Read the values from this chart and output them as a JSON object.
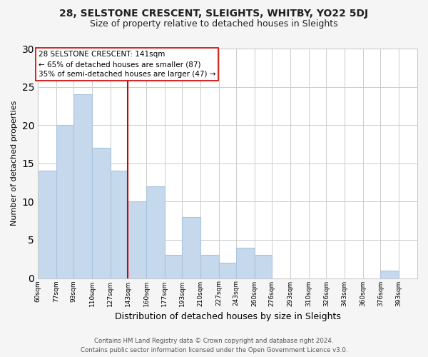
{
  "title1": "28, SELSTONE CRESCENT, SLEIGHTS, WHITBY, YO22 5DJ",
  "title2": "Size of property relative to detached houses in Sleights",
  "xlabel": "Distribution of detached houses by size in Sleights",
  "ylabel": "Number of detached properties",
  "bin_edges": [
    60,
    77,
    93,
    110,
    127,
    143,
    160,
    177,
    193,
    210,
    227,
    243,
    260,
    276,
    293,
    310,
    326,
    343,
    360,
    376,
    393,
    410
  ],
  "bin_labels": [
    "60sqm",
    "77sqm",
    "93sqm",
    "110sqm",
    "127sqm",
    "143sqm",
    "160sqm",
    "177sqm",
    "193sqm",
    "210sqm",
    "227sqm",
    "243sqm",
    "260sqm",
    "276sqm",
    "293sqm",
    "310sqm",
    "326sqm",
    "343sqm",
    "360sqm",
    "376sqm",
    "393sqm"
  ],
  "values": [
    14,
    20,
    24,
    17,
    14,
    10,
    12,
    3,
    8,
    3,
    2,
    4,
    3,
    0,
    0,
    0,
    0,
    0,
    0,
    1,
    0
  ],
  "bar_color": "#c5d8ec",
  "bar_edge_color": "#aac4de",
  "reference_line_color": "#cc0000",
  "annotation_title": "28 SELSTONE CRESCENT: 141sqm",
  "annotation_line1": "← 65% of detached houses are smaller (87)",
  "annotation_line2": "35% of semi-detached houses are larger (47) →",
  "annotation_box_edge_color": "#cc0000",
  "annotation_box_face_color": "#ffffff",
  "ylim": [
    0,
    30
  ],
  "yticks": [
    0,
    5,
    10,
    15,
    20,
    25,
    30
  ],
  "footer1": "Contains HM Land Registry data © Crown copyright and database right 2024.",
  "footer2": "Contains public sector information licensed under the Open Government Licence v3.0.",
  "bg_color": "#f5f5f5",
  "plot_bg_color": "#ffffff",
  "grid_color": "#cccccc"
}
